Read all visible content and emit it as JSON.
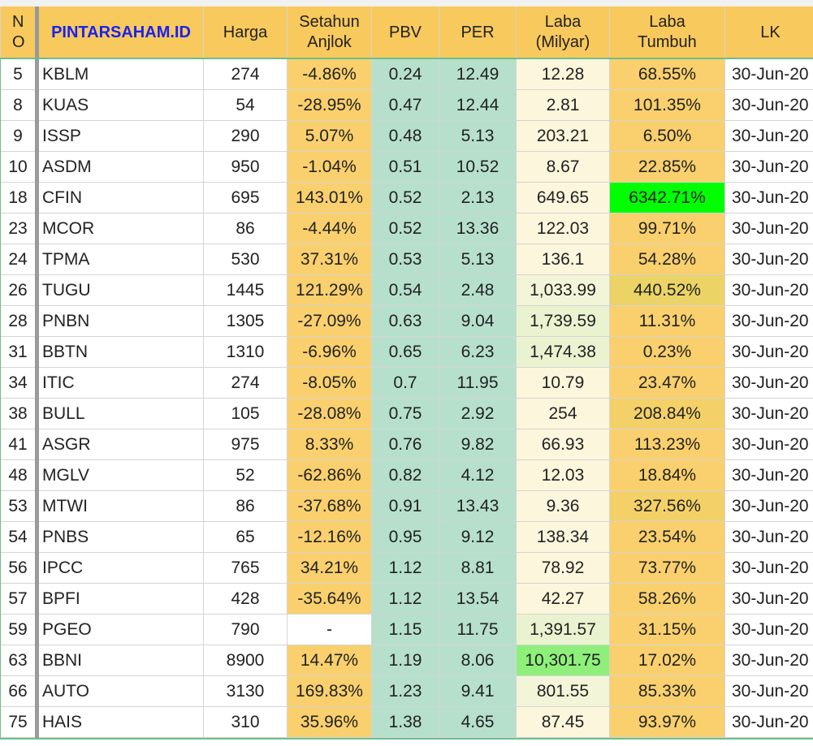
{
  "table": {
    "header": [
      "NO",
      "PINTARSAHAM.ID",
      "Harga",
      "Setahun Anjlok",
      "PBV",
      "PER",
      "Laba (Milyar)",
      "Laba Tumbuh",
      "LK"
    ],
    "rows": [
      [
        "5",
        "KBLM",
        "274",
        "-4.86%",
        "0.24",
        "12.49",
        "12.28",
        "68.55%",
        "30-Jun-20"
      ],
      [
        "8",
        "KUAS",
        "54",
        "-28.95%",
        "0.47",
        "12.44",
        "2.81",
        "101.35%",
        "30-Jun-20"
      ],
      [
        "9",
        "ISSP",
        "290",
        "5.07%",
        "0.48",
        "5.13",
        "203.21",
        "6.50%",
        "30-Jun-20"
      ],
      [
        "10",
        "ASDM",
        "950",
        "-1.04%",
        "0.51",
        "10.52",
        "8.67",
        "22.85%",
        "30-Jun-20"
      ],
      [
        "18",
        "CFIN",
        "695",
        "143.01%",
        "0.52",
        "2.13",
        "649.65",
        "6342.71%",
        "30-Jun-20"
      ],
      [
        "23",
        "MCOR",
        "86",
        "-4.44%",
        "0.52",
        "13.36",
        "122.03",
        "99.71%",
        "30-Jun-20"
      ],
      [
        "24",
        "TPMA",
        "530",
        "37.31%",
        "0.53",
        "5.13",
        "136.1",
        "54.28%",
        "30-Jun-20"
      ],
      [
        "26",
        "TUGU",
        "1445",
        "121.29%",
        "0.54",
        "2.48",
        "1,033.99",
        "440.52%",
        "30-Jun-20"
      ],
      [
        "28",
        "PNBN",
        "1305",
        "-27.09%",
        "0.63",
        "9.04",
        "1,739.59",
        "11.31%",
        "30-Jun-20"
      ],
      [
        "31",
        "BBTN",
        "1310",
        "-6.96%",
        "0.65",
        "6.23",
        "1,474.38",
        "0.23%",
        "30-Jun-20"
      ],
      [
        "34",
        "ITIC",
        "274",
        "-8.05%",
        "0.7",
        "11.95",
        "10.79",
        "23.47%",
        "30-Jun-20"
      ],
      [
        "38",
        "BULL",
        "105",
        "-28.08%",
        "0.75",
        "2.92",
        "254",
        "208.84%",
        "30-Jun-20"
      ],
      [
        "41",
        "ASGR",
        "975",
        "8.33%",
        "0.76",
        "9.82",
        "66.93",
        "113.23%",
        "30-Jun-20"
      ],
      [
        "48",
        "MGLV",
        "52",
        "-62.86%",
        "0.82",
        "4.12",
        "12.03",
        "18.84%",
        "30-Jun-20"
      ],
      [
        "53",
        "MTWI",
        "86",
        "-37.68%",
        "0.91",
        "13.43",
        "9.36",
        "327.56%",
        "30-Jun-20"
      ],
      [
        "54",
        "PNBS",
        "65",
        "-12.16%",
        "0.95",
        "9.12",
        "138.34",
        "23.54%",
        "30-Jun-20"
      ],
      [
        "56",
        "IPCC",
        "765",
        "34.21%",
        "1.12",
        "8.81",
        "78.92",
        "73.77%",
        "30-Jun-20"
      ],
      [
        "57",
        "BPFI",
        "428",
        "-35.64%",
        "1.12",
        "13.54",
        "42.27",
        "58.26%",
        "30-Jun-20"
      ],
      [
        "59",
        "PGEO",
        "790",
        "-",
        "1.15",
        "11.75",
        "1,391.57",
        "31.15%",
        "30-Jun-20"
      ],
      [
        "63",
        "BBNI",
        "8900",
        "14.47%",
        "1.19",
        "8.06",
        "10,301.75",
        "17.02%",
        "30-Jun-20"
      ],
      [
        "66",
        "AUTO",
        "3130",
        "169.83%",
        "1.23",
        "9.41",
        "801.55",
        "85.33%",
        "30-Jun-20"
      ],
      [
        "75",
        "HAIS",
        "310",
        "35.96%",
        "1.38",
        "4.65",
        "87.45",
        "93.97%",
        "30-Jun-20"
      ]
    ]
  }
}
